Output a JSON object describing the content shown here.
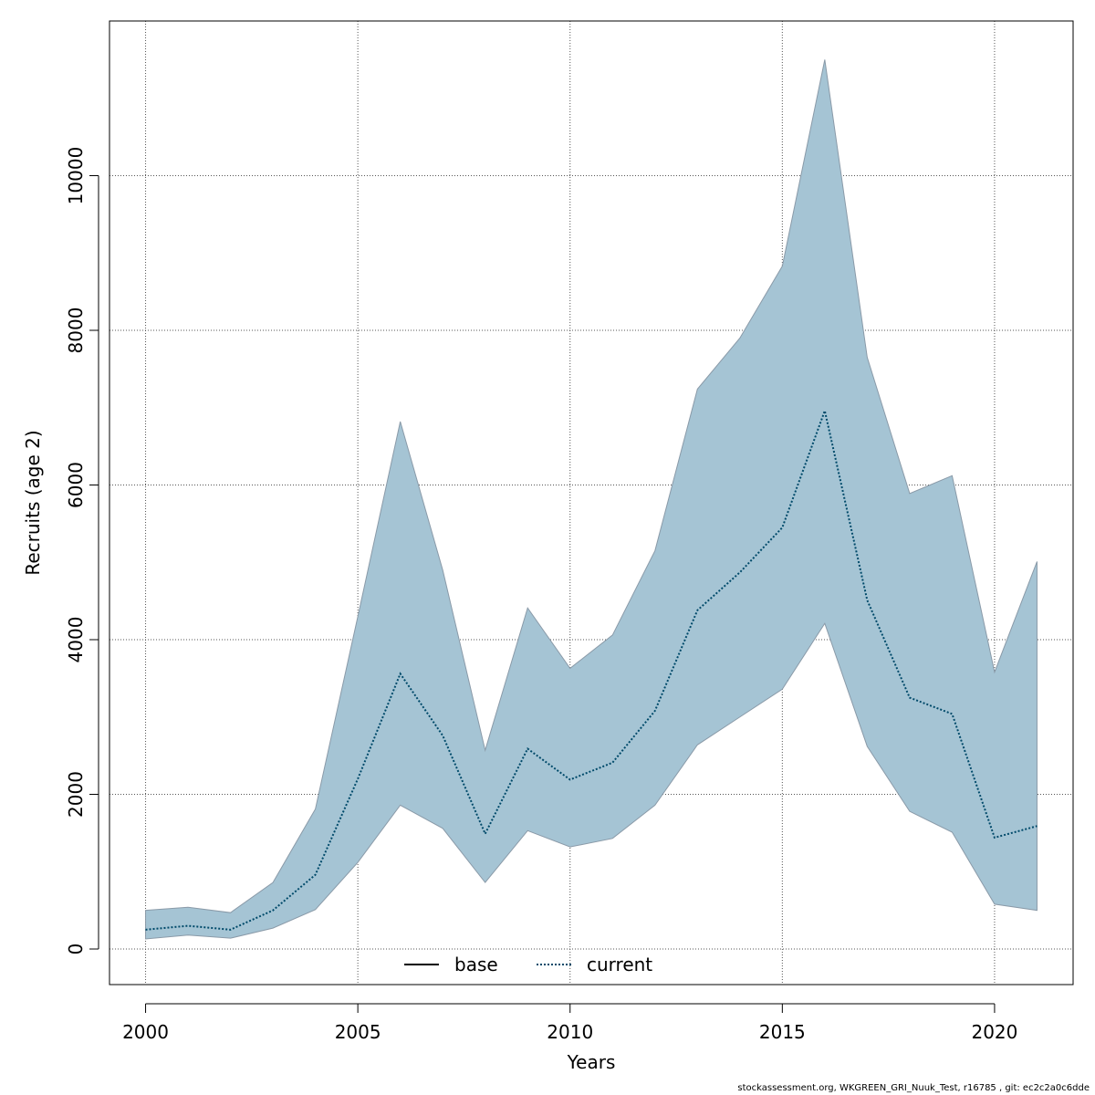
{
  "chart_data": {
    "type": "area",
    "title": "",
    "xlabel": "Years",
    "ylabel": "Recruits (age 2)",
    "xlim": [
      1999.15,
      2021.85
    ],
    "ylim": [
      -460,
      12000
    ],
    "x_ticks": [
      2000,
      2005,
      2010,
      2015,
      2020
    ],
    "y_ticks": [
      0,
      2000,
      4000,
      6000,
      8000,
      10000
    ],
    "grid": true,
    "band_color": "#A5C4D4",
    "band_edge_color": "#8A9AA8",
    "x": [
      2000,
      2001,
      2002,
      2003,
      2004,
      2005,
      2006,
      2007,
      2008,
      2009,
      2010,
      2011,
      2012,
      2013,
      2014,
      2015,
      2016,
      2017,
      2018,
      2019,
      2020,
      2021
    ],
    "upper": [
      500,
      540,
      470,
      860,
      1810,
      4300,
      6820,
      4900,
      2570,
      4410,
      3630,
      4060,
      5150,
      7240,
      7900,
      8830,
      11500,
      7650,
      5890,
      6120,
      3580,
      5010
    ],
    "lower": [
      130,
      180,
      140,
      270,
      510,
      1120,
      1860,
      1560,
      860,
      1530,
      1320,
      1430,
      1860,
      2640,
      3000,
      3360,
      4210,
      2620,
      1780,
      1510,
      580,
      500
    ],
    "series": [
      {
        "name": "current",
        "color": "#004A6A",
        "style": "dotted",
        "values": [
          250,
          300,
          250,
          500,
          960,
          2200,
          3560,
          2760,
          1490,
          2590,
          2190,
          2410,
          3080,
          4380,
          4870,
          5450,
          6960,
          4510,
          3250,
          3040,
          1440,
          1590
        ]
      }
    ],
    "legend": [
      {
        "label": "base",
        "style": "solid",
        "color": "#000000"
      },
      {
        "label": "current",
        "style": "dotted",
        "color": "#004A6A"
      }
    ],
    "legend_position": "bottom"
  },
  "footer": "stockassessment.org, WKGREEN_GRI_Nuuk_Test, r16785 , git: ec2c2a0c6dde"
}
